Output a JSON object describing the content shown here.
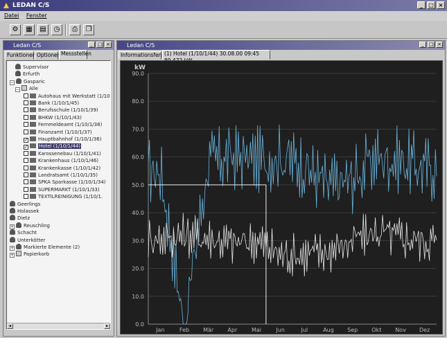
{
  "app": {
    "title": "LEDAN C/S"
  },
  "menu": {
    "items": [
      "Datei",
      "Fenster"
    ]
  },
  "toolbar": {
    "icons": [
      "settings-icon",
      "grid-icon",
      "list-icon",
      "clock-icon",
      "print-icon",
      "window-icon"
    ]
  },
  "left_window": {
    "title": "Ledan C/S",
    "tabs": [
      "Funktionen",
      "Optionen",
      "Messstellen"
    ],
    "active_tab": "Messstellen",
    "tree": [
      {
        "label": "Supervisor",
        "kind": "person",
        "level": 1
      },
      {
        "label": "Erfurth",
        "kind": "person",
        "level": 1
      },
      {
        "label": "Gasparic",
        "kind": "person",
        "level": 0,
        "expander": "−"
      },
      {
        "label": "Alle",
        "kind": "folder",
        "level": 1,
        "expander": "−"
      },
      {
        "label": "Autohaus mit Werkstatt (1/10.",
        "kind": "meter",
        "level": 2,
        "checked": false
      },
      {
        "label": "Bank (1/10/1/45)",
        "kind": "meter",
        "level": 2,
        "checked": false
      },
      {
        "label": "Berufsschule (1/10/1/39)",
        "kind": "meter",
        "level": 2,
        "checked": false
      },
      {
        "label": "BHKW (1/10/1/43)",
        "kind": "meter",
        "level": 2,
        "checked": false
      },
      {
        "label": "Fernmeldeamt (1/10/1/38)",
        "kind": "meter",
        "level": 2,
        "checked": false
      },
      {
        "label": "Finanzamt (1/10/1/37)",
        "kind": "meter",
        "level": 2,
        "checked": false
      },
      {
        "label": "Hauptbahnhof (1/10/1/36)",
        "kind": "meter",
        "level": 2,
        "checked": true
      },
      {
        "label": "Hotel (1/10/1/44)",
        "kind": "meter",
        "level": 2,
        "checked": true,
        "selected": true
      },
      {
        "label": "Karossenebau (1/10/1/41)",
        "kind": "meter",
        "level": 2,
        "checked": false
      },
      {
        "label": "Krankenhaus (1/10/1/46)",
        "kind": "meter",
        "level": 2,
        "checked": false
      },
      {
        "label": "Krankenkasse (1/10/1/42)",
        "kind": "meter",
        "level": 2,
        "checked": false
      },
      {
        "label": "Landratsamt (1/10/1/35)",
        "kind": "meter",
        "level": 2,
        "checked": false
      },
      {
        "label": "SPKA Sparkasse (1/10/1/34)",
        "kind": "meter",
        "level": 2,
        "checked": false
      },
      {
        "label": "SUPERMARKT (1/10/1/33)",
        "kind": "meter",
        "level": 2,
        "checked": false
      },
      {
        "label": "TEXTILREINIGUNG (1/10/1.",
        "kind": "meter",
        "level": 2,
        "checked": false
      },
      {
        "label": "Geerlings",
        "kind": "person",
        "level": 0
      },
      {
        "label": "Holassek",
        "kind": "person",
        "level": 0
      },
      {
        "label": "Dietz",
        "kind": "person",
        "level": 0
      },
      {
        "label": "Reuschling",
        "kind": "person",
        "level": 0,
        "expander": "+"
      },
      {
        "label": "Schacht",
        "kind": "person",
        "level": 0
      },
      {
        "label": "Unterkötter",
        "kind": "person",
        "level": 0
      },
      {
        "label": "Markierte Elemente (2)",
        "kind": "marker",
        "level": 0,
        "expander": "+"
      },
      {
        "label": "Papierkorb",
        "kind": "trash",
        "level": 0,
        "expander": "+"
      }
    ]
  },
  "right_window": {
    "title": "Ledan C/S",
    "tabs": [
      "Informationsfenster",
      "(1) Hotel (1/10/1/44) 30.08.00 09:45 89.472 kW"
    ],
    "active_tab": 1
  },
  "chart_data": {
    "type": "line",
    "ylabel": "kW",
    "ylim": [
      0,
      90
    ],
    "yticks": [
      "0.0",
      "10.0",
      "20.0",
      "30.0",
      "40.0",
      "50.0",
      "60.0",
      "70.0",
      "80.0",
      "90.0"
    ],
    "categories": [
      "Jan",
      "Feb",
      "Mär",
      "Apr",
      "Mai",
      "Jun",
      "Jul",
      "Aug",
      "Sep",
      "Okt",
      "Nov",
      "Dez"
    ],
    "grid": true,
    "crosshair": {
      "month_index": 4.4,
      "value": 50
    },
    "series": [
      {
        "color": "#6ab4dc",
        "values": [
          55,
          0,
          58,
          60,
          59,
          60,
          57,
          49,
          52,
          60,
          59,
          56
        ]
      },
      {
        "color": "#e6e6e6",
        "values": [
          31,
          32,
          31,
          29,
          30,
          25,
          25,
          26,
          30,
          33,
          31,
          30
        ]
      }
    ]
  }
}
